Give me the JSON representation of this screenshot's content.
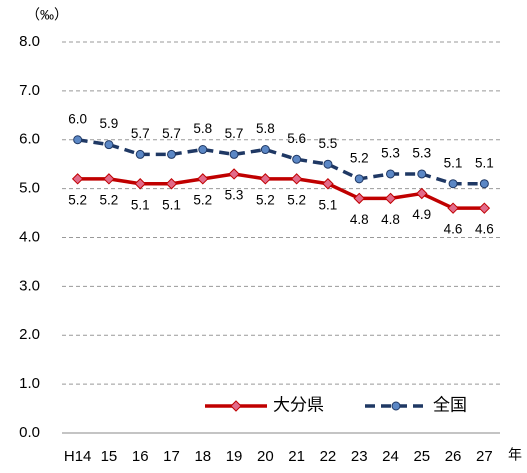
{
  "chart_data": {
    "type": "line",
    "y_unit_label": "（‰）",
    "x_unit_label": "年",
    "categories": [
      "H14",
      "15",
      "16",
      "17",
      "18",
      "19",
      "20",
      "21",
      "22",
      "23",
      "24",
      "25",
      "26",
      "27"
    ],
    "series": [
      {
        "name": "大分県",
        "color": "#c00000",
        "marker": "diamond",
        "marker_color": "#e26b8a",
        "dashed": false,
        "label_position": "below",
        "values": [
          5.2,
          5.2,
          5.1,
          5.1,
          5.2,
          5.3,
          5.2,
          5.2,
          5.1,
          4.8,
          4.8,
          4.9,
          4.6,
          4.6
        ]
      },
      {
        "name": "全国",
        "color": "#1f3864",
        "marker": "circle",
        "marker_color": "#5b87c5",
        "dashed": true,
        "label_position": "above",
        "values": [
          6.0,
          5.9,
          5.7,
          5.7,
          5.8,
          5.7,
          5.8,
          5.6,
          5.5,
          5.2,
          5.3,
          5.3,
          5.1,
          5.1
        ],
        "value_labels": [
          "6.0",
          "5.9",
          "5.7",
          "5.7",
          "5.8",
          "5.7",
          "5.8",
          "5.6",
          "5.5",
          "5.2",
          "5.3",
          "5.3",
          "5.1",
          "5.1"
        ]
      }
    ],
    "ylim": [
      0,
      8
    ],
    "yticks": [
      {
        "value": 0,
        "label": "0.0"
      },
      {
        "value": 1,
        "label": "1.0"
      },
      {
        "value": 2,
        "label": "2.0"
      },
      {
        "value": 3,
        "label": "3.0"
      },
      {
        "value": 4,
        "label": "4.0"
      },
      {
        "value": 5,
        "label": "5.0"
      },
      {
        "value": 6,
        "label": "6.0"
      },
      {
        "value": 7,
        "label": "7.0"
      },
      {
        "value": 8,
        "label": "8.0"
      }
    ],
    "grid": true
  }
}
